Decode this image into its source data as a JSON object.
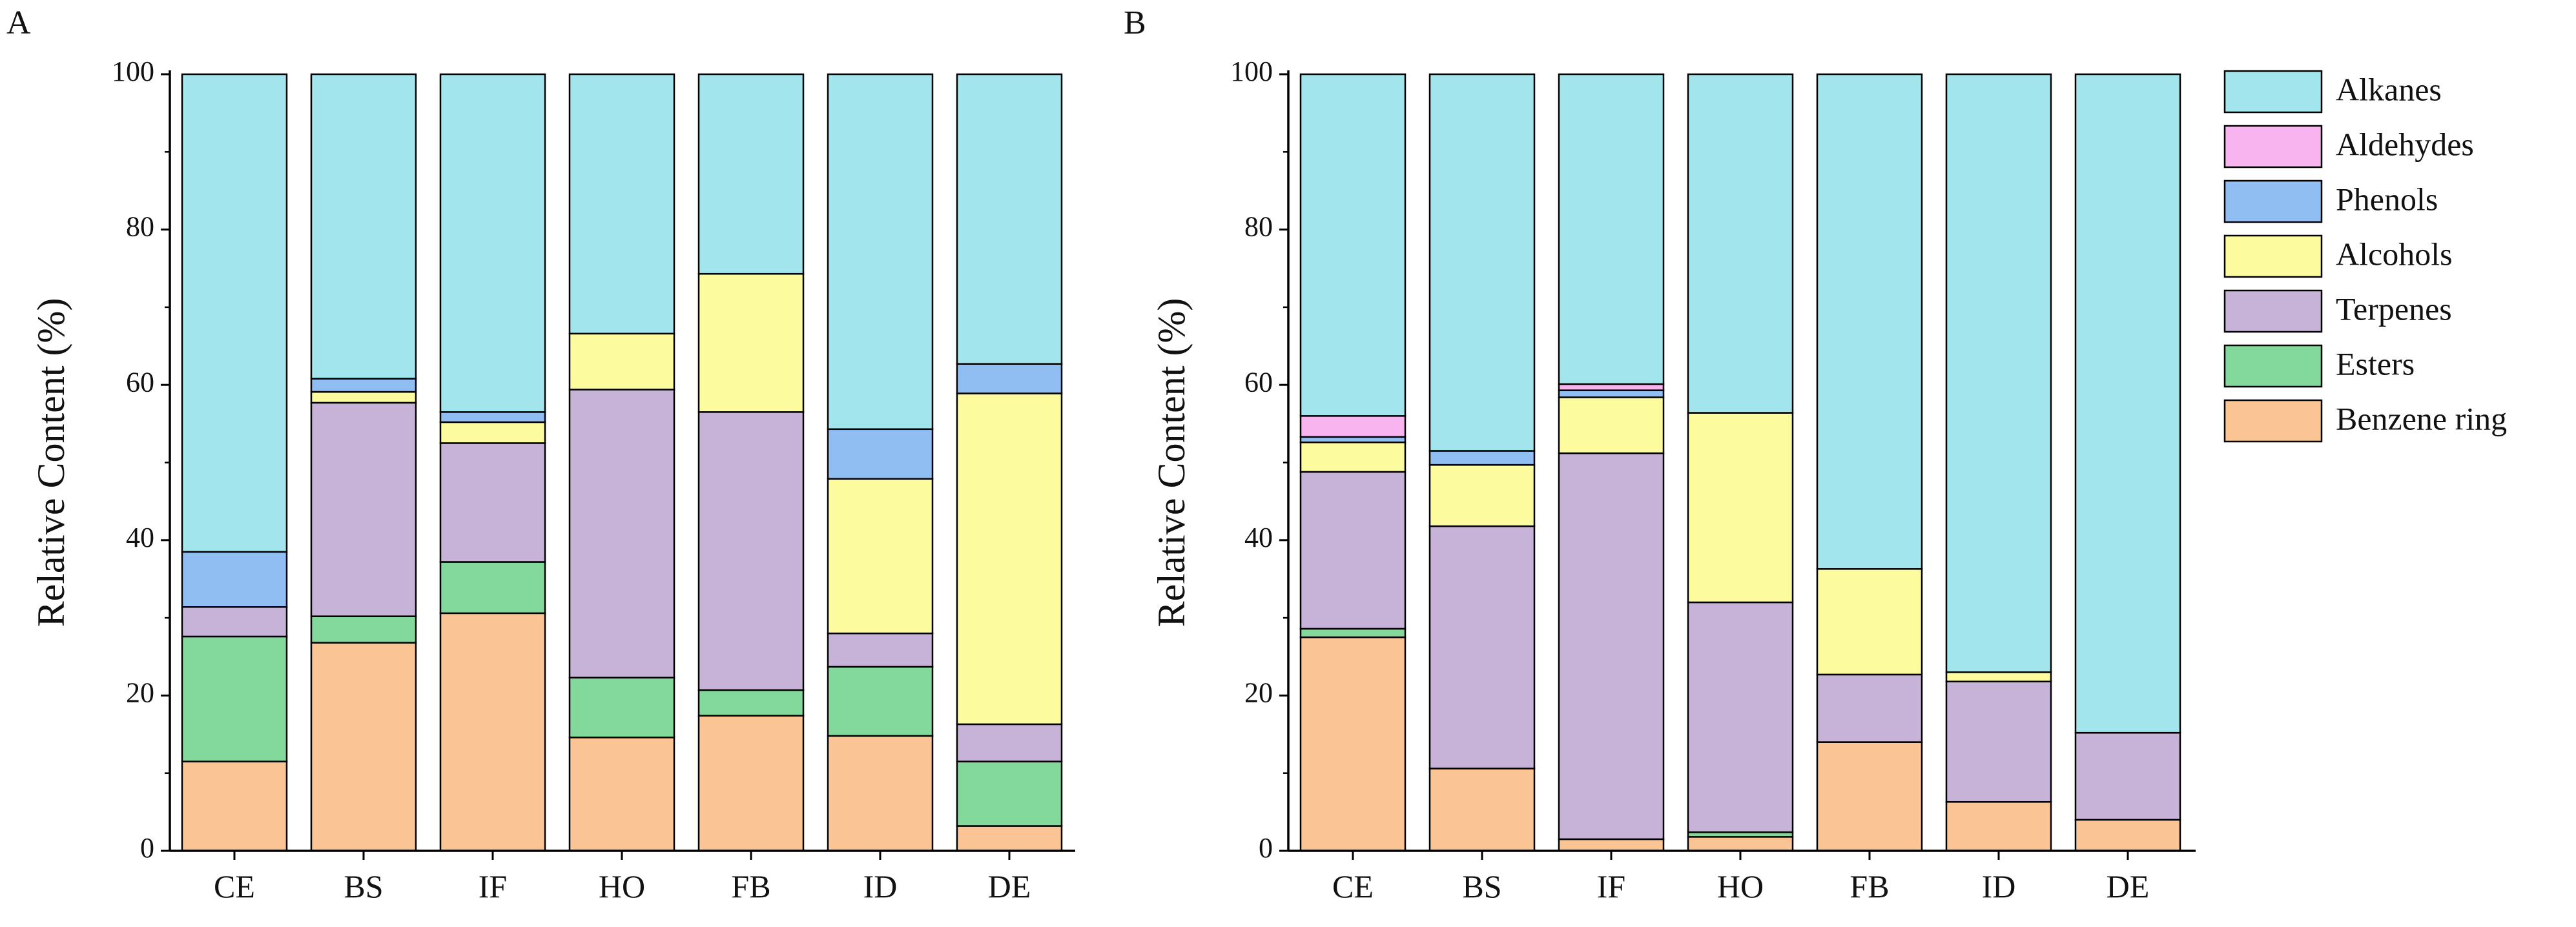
{
  "figure": {
    "legend_position": "right",
    "series_order": [
      "Benzene ring",
      "Esters",
      "Terpenes",
      "Alcohols",
      "Phenols",
      "Aldehydes",
      "Alkanes"
    ],
    "colors": {
      "Alkanes": "#a3e5ed",
      "Aldehydes": "#f8b4ef",
      "Phenols": "#90bdf2",
      "Alcohols": "#fcfc9f",
      "Terpenes": "#c8b3d8",
      "Esters": "#82d99b",
      "Benzene ring": "#fbc495"
    },
    "legend": {
      "items": [
        "Alkanes",
        "Aldehydes",
        "Phenols",
        "Alcohols",
        "Terpenes",
        "Esters",
        "Benzene ring"
      ]
    }
  },
  "chart_data": [
    {
      "panel": "A",
      "type": "bar",
      "stacked": true,
      "ylabel": "Relative Content (%)",
      "xlabel": "",
      "ylim": [
        0,
        100
      ],
      "yticks": [
        0,
        20,
        40,
        60,
        80,
        100
      ],
      "categories": [
        "CE",
        "BS",
        "IF",
        "HO",
        "FB",
        "ID",
        "DE"
      ],
      "series": [
        {
          "name": "Benzene ring",
          "values": [
            11.5,
            26.8,
            30.6,
            14.6,
            17.4,
            14.8,
            3.2
          ]
        },
        {
          "name": "Esters",
          "values": [
            16.1,
            3.4,
            6.6,
            7.7,
            3.3,
            8.9,
            8.3
          ]
        },
        {
          "name": "Terpenes",
          "values": [
            3.8,
            27.5,
            15.3,
            37.1,
            35.8,
            4.3,
            4.8
          ]
        },
        {
          "name": "Alcohols",
          "values": [
            0,
            1.4,
            2.7,
            7.2,
            17.8,
            19.9,
            42.6
          ]
        },
        {
          "name": "Phenols",
          "values": [
            7.1,
            1.7,
            1.3,
            0,
            0,
            6.4,
            3.8
          ]
        },
        {
          "name": "Aldehydes",
          "values": [
            0,
            0,
            0,
            0,
            0,
            0,
            0
          ]
        },
        {
          "name": "Alkanes",
          "values": [
            61.5,
            39.2,
            43.5,
            33.4,
            25.7,
            45.7,
            37.3
          ]
        }
      ]
    },
    {
      "panel": "B",
      "type": "bar",
      "stacked": true,
      "ylabel": "Relative Content (%)",
      "xlabel": "",
      "ylim": [
        0,
        100
      ],
      "yticks": [
        0,
        20,
        40,
        60,
        80,
        100
      ],
      "categories": [
        "CE",
        "BS",
        "IF",
        "HO",
        "FB",
        "ID",
        "DE"
      ],
      "series": [
        {
          "name": "Benzene ring",
          "values": [
            27.5,
            10.6,
            1.5,
            1.8,
            14.0,
            6.3,
            4.0
          ]
        },
        {
          "name": "Esters",
          "values": [
            1.1,
            0,
            0,
            0.6,
            0,
            0,
            0
          ]
        },
        {
          "name": "Terpenes",
          "values": [
            20.2,
            31.2,
            49.7,
            29.6,
            8.7,
            15.5,
            11.2
          ]
        },
        {
          "name": "Alcohols",
          "values": [
            3.8,
            7.9,
            7.2,
            24.4,
            13.6,
            1.2,
            0
          ]
        },
        {
          "name": "Phenols",
          "values": [
            0.7,
            1.8,
            0.9,
            0,
            0,
            0,
            0
          ]
        },
        {
          "name": "Aldehydes",
          "values": [
            2.7,
            0,
            0.8,
            0,
            0,
            0,
            0
          ]
        },
        {
          "name": "Alkanes",
          "values": [
            44.0,
            48.5,
            39.9,
            43.6,
            63.7,
            77.0,
            84.8
          ]
        }
      ]
    }
  ]
}
